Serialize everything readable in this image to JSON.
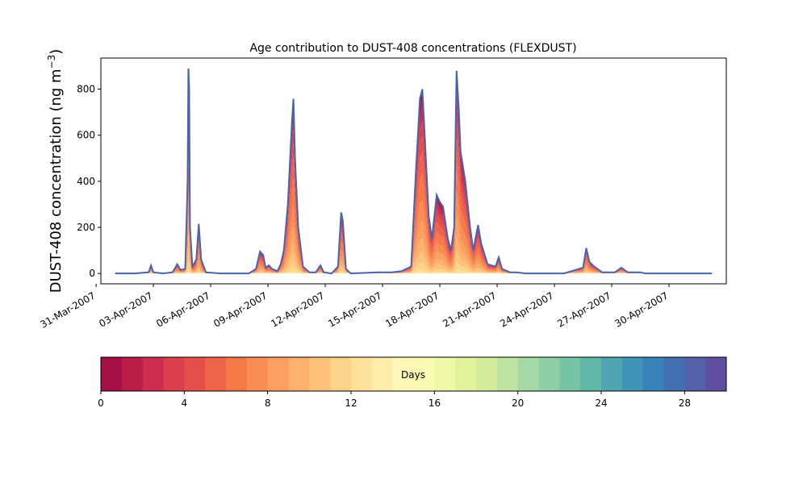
{
  "chart_data": {
    "type": "area",
    "title": "Age contribution to DUST-408 concentrations (FLEXDUST)",
    "ylabel": "DUST-408 concentration (ng m",
    "ylabel_sup": "−3",
    "ylabel_close": ")",
    "xlabel": "",
    "xlim": [
      "2007-03-31T06:00",
      "2007-05-03T00:00"
    ],
    "ylim": [
      -45,
      935
    ],
    "y_ticks": [
      0,
      200,
      400,
      600,
      800
    ],
    "x_tick_dates": [
      "2007-03-31",
      "2007-04-03",
      "2007-04-06",
      "2007-04-09",
      "2007-04-12",
      "2007-04-15",
      "2007-04-18",
      "2007-04-21",
      "2007-04-24",
      "2007-04-27",
      "2007-04-30"
    ],
    "x_tick_labels": [
      "31-Mar-2007",
      "03-Apr-2007",
      "06-Apr-2007",
      "09-Apr-2007",
      "12-Apr-2007",
      "15-Apr-2007",
      "18-Apr-2007",
      "21-Apr-2007",
      "24-Apr-2007",
      "27-Apr-2007",
      "30-Apr-2007"
    ],
    "series": [
      {
        "total": [
          [
            "2007-04-01T00:00",
            0
          ],
          [
            "2007-04-02T00:00",
            0
          ],
          [
            "2007-04-02T18:00",
            5
          ],
          [
            "2007-04-02T21:00",
            35
          ],
          [
            "2007-04-03T00:00",
            5
          ],
          [
            "2007-04-03T12:00",
            0
          ],
          [
            "2007-04-04T00:00",
            5
          ],
          [
            "2007-04-04T06:00",
            40
          ],
          [
            "2007-04-04T10:00",
            15
          ],
          [
            "2007-04-04T16:00",
            20
          ],
          [
            "2007-04-04T19:00",
            400
          ],
          [
            "2007-04-04T20:00",
            890
          ],
          [
            "2007-04-04T21:00",
            800
          ],
          [
            "2007-04-04T22:00",
            200
          ],
          [
            "2007-04-05T01:00",
            30
          ],
          [
            "2007-04-05T06:00",
            60
          ],
          [
            "2007-04-05T09:00",
            215
          ],
          [
            "2007-04-05T12:00",
            60
          ],
          [
            "2007-04-05T18:00",
            5
          ],
          [
            "2007-04-06T12:00",
            0
          ],
          [
            "2007-04-08T00:00",
            0
          ],
          [
            "2007-04-08T09:00",
            20
          ],
          [
            "2007-04-08T14:00",
            95
          ],
          [
            "2007-04-08T18:00",
            80
          ],
          [
            "2007-04-08T21:00",
            25
          ],
          [
            "2007-04-09T01:00",
            35
          ],
          [
            "2007-04-09T05:00",
            20
          ],
          [
            "2007-04-09T12:00",
            10
          ],
          [
            "2007-04-09T16:00",
            40
          ],
          [
            "2007-04-09T20:00",
            100
          ],
          [
            "2007-04-10T01:00",
            300
          ],
          [
            "2007-04-10T06:00",
            650
          ],
          [
            "2007-04-10T08:00",
            758
          ],
          [
            "2007-04-10T10:00",
            500
          ],
          [
            "2007-04-10T14:00",
            200
          ],
          [
            "2007-04-10T20:00",
            30
          ],
          [
            "2007-04-11T04:00",
            5
          ],
          [
            "2007-04-11T12:00",
            5
          ],
          [
            "2007-04-11T18:00",
            35
          ],
          [
            "2007-04-11T22:00",
            5
          ],
          [
            "2007-04-12T08:00",
            0
          ],
          [
            "2007-04-12T16:00",
            30
          ],
          [
            "2007-04-12T20:00",
            265
          ],
          [
            "2007-04-12T22:00",
            230
          ],
          [
            "2007-04-13T02:00",
            20
          ],
          [
            "2007-04-13T08:00",
            0
          ],
          [
            "2007-04-14T18:00",
            5
          ],
          [
            "2007-04-15T12:00",
            5
          ],
          [
            "2007-04-16T00:00",
            10
          ],
          [
            "2007-04-16T12:00",
            30
          ],
          [
            "2007-04-16T18:00",
            450
          ],
          [
            "2007-04-16T23:00",
            760
          ],
          [
            "2007-04-17T02:00",
            800
          ],
          [
            "2007-04-17T05:00",
            600
          ],
          [
            "2007-04-17T10:00",
            250
          ],
          [
            "2007-04-17T14:00",
            150
          ],
          [
            "2007-04-17T20:00",
            340
          ],
          [
            "2007-04-18T00:00",
            310
          ],
          [
            "2007-04-18T04:00",
            290
          ],
          [
            "2007-04-18T10:00",
            150
          ],
          [
            "2007-04-18T14:00",
            100
          ],
          [
            "2007-04-18T18:00",
            200
          ],
          [
            "2007-04-18T21:00",
            880
          ],
          [
            "2007-04-19T00:00",
            700
          ],
          [
            "2007-04-19T02:00",
            530
          ],
          [
            "2007-04-19T08:00",
            400
          ],
          [
            "2007-04-19T14:00",
            200
          ],
          [
            "2007-04-19T18:00",
            100
          ],
          [
            "2007-04-20T00:00",
            210
          ],
          [
            "2007-04-20T04:00",
            130
          ],
          [
            "2007-04-20T12:00",
            40
          ],
          [
            "2007-04-20T22:00",
            30
          ],
          [
            "2007-04-21T02:00",
            70
          ],
          [
            "2007-04-21T06:00",
            20
          ],
          [
            "2007-04-21T16:00",
            5
          ],
          [
            "2007-04-22T00:00",
            5
          ],
          [
            "2007-04-22T12:00",
            0
          ],
          [
            "2007-04-23T12:00",
            0
          ],
          [
            "2007-04-24T12:00",
            0
          ],
          [
            "2007-04-25T12:00",
            25
          ],
          [
            "2007-04-25T16:00",
            110
          ],
          [
            "2007-04-25T20:00",
            50
          ],
          [
            "2007-04-26T02:00",
            30
          ],
          [
            "2007-04-26T12:00",
            5
          ],
          [
            "2007-04-27T04:00",
            5
          ],
          [
            "2007-04-27T12:00",
            25
          ],
          [
            "2007-04-27T20:00",
            5
          ],
          [
            "2007-04-28T12:00",
            5
          ],
          [
            "2007-04-28T18:00",
            0
          ],
          [
            "2007-05-02T06:00",
            0
          ]
        ],
        "age_fractions": [
          0.05,
          0.05,
          0.07,
          0.08,
          0.09,
          0.12,
          0.14,
          0.11,
          0.1,
          0.07,
          0.06,
          0.04,
          0.02
        ]
      }
    ],
    "colorbar": {
      "label": "Days",
      "min": 0,
      "max": 30,
      "ticks": [
        0,
        4,
        8,
        12,
        16,
        20,
        24,
        28
      ],
      "colors": [
        "#a50f43",
        "#b81d48",
        "#cb2e4c",
        "#db3e4d",
        "#e54f4a",
        "#ef6446",
        "#f57a48",
        "#f88e53",
        "#fba060",
        "#fcb26d",
        "#fdc37a",
        "#fdd38a",
        "#fee29b",
        "#feedaa",
        "#fff7b7",
        "#f8fbb1",
        "#eef8a7",
        "#e2f29b",
        "#d2ec9b",
        "#bde3a0",
        "#a6daa4",
        "#8ecfa5",
        "#76c4a5",
        "#61b7a8",
        "#4fa6b0",
        "#3f95b8",
        "#3882ba",
        "#436fb3",
        "#5261a8",
        "#5e4fa2"
      ]
    },
    "outline_color": "#4a63ad"
  }
}
